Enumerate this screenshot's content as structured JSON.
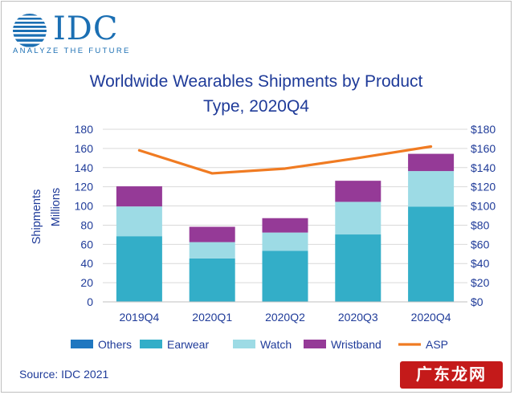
{
  "logo": {
    "wordmark": "IDC",
    "tagline": "ANALYZE THE FUTURE"
  },
  "source": "Source: IDC 2021",
  "watermark": "广东龙网",
  "chart_data": {
    "type": "bar",
    "stacked": true,
    "title": "Worldwide Wearables Shipments by Product Type, 2020Q4",
    "title_lines": [
      "Worldwide Wearables Shipments by Product",
      "Type, 2020Q4"
    ],
    "ylabel": [
      "Shipments",
      "Millions"
    ],
    "y2label": "",
    "categories": [
      "2019Q4",
      "2020Q1",
      "2020Q2",
      "2020Q3",
      "2020Q4"
    ],
    "ylim": [
      0,
      180
    ],
    "yticks": [
      0,
      20,
      40,
      60,
      80,
      100,
      120,
      140,
      160,
      180
    ],
    "y2lim": [
      0,
      180
    ],
    "y2ticks": [
      "$0",
      "$20",
      "$40",
      "$60",
      "$80",
      "$100",
      "$120",
      "$140",
      "$160",
      "$180"
    ],
    "grid": true,
    "legend_position": "bottom",
    "series": [
      {
        "name": "Others",
        "color": "#1f77c0",
        "values": [
          0.5,
          0.3,
          0.3,
          0.3,
          0.4
        ]
      },
      {
        "name": "Earwear",
        "color": "#33aec8",
        "values": [
          68,
          45,
          53,
          70,
          99
        ]
      },
      {
        "name": "Watch",
        "color": "#9ddbe5",
        "values": [
          31,
          17,
          19,
          34,
          37
        ]
      },
      {
        "name": "Wristband",
        "color": "#953a97",
        "values": [
          21,
          16,
          15,
          22,
          18
        ]
      }
    ],
    "line_series": {
      "name": "ASP",
      "color": "#f07b22",
      "axis": "y2",
      "values": [
        158,
        134,
        139,
        150,
        162
      ]
    }
  }
}
